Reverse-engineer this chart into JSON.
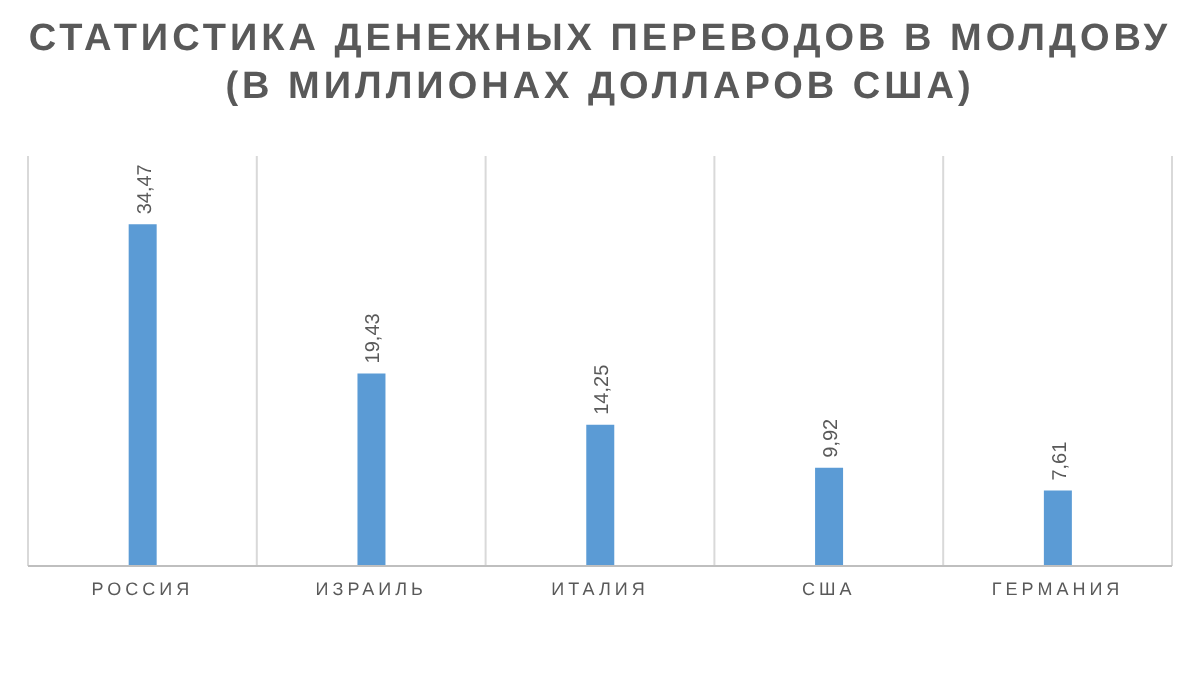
{
  "chart_data": {
    "type": "bar",
    "title": "СТАТИСТИКА ДЕНЕЖНЫХ ПЕРЕВОДОВ В МОЛДОВУ\n(В МИЛЛИОНАХ ДОЛЛАРОВ США)",
    "categories": [
      "РОССИЯ",
      "ИЗРАИЛЬ",
      "ИТАЛИЯ",
      "США",
      "ГЕРМАНИЯ"
    ],
    "values": [
      34.47,
      19.43,
      14.25,
      9.92,
      7.61
    ],
    "value_labels": [
      "34,47",
      "19,43",
      "14,25",
      "9,92",
      "7,61"
    ],
    "color": "#5b9bd5",
    "grid": "x"
  }
}
